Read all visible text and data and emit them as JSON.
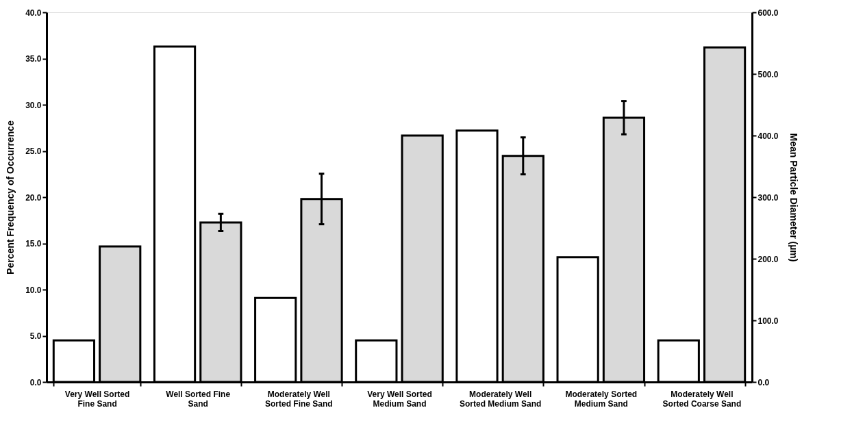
{
  "chart_data": {
    "type": "bar",
    "categories": [
      "Very Well Sorted Fine Sand",
      "Well Sorted Fine Sand",
      "Moderately Well Sorted Fine Sand",
      "Very Well Sorted Medium Sand",
      "Moderately Well Sorted Medium Sand",
      "Moderately Sorted Medium Sand",
      "Moderately Well Sorted Coarse Sand"
    ],
    "series": [
      {
        "color": "#ffffff",
        "values": [
          4.5,
          36.3,
          9.1,
          4.5,
          27.2,
          13.5,
          4.5
        ]
      },
      {
        "color": "#d9d9d9",
        "axis": "y2",
        "values": [
          220,
          259,
          297,
          400,
          367,
          429,
          543
        ],
        "errors": [
          null,
          14,
          41,
          null,
          30,
          27,
          null
        ]
      }
    ],
    "ylabel": "Percent Frequency of Occurrence",
    "y2label": "Mean Particle Diameter (µm)",
    "ylim": [
      0,
      40
    ],
    "yticks": [
      {
        "value": 0,
        "label": "0.0"
      },
      {
        "value": 5,
        "label": "5.0"
      },
      {
        "value": 10,
        "label": "10.0"
      },
      {
        "value": 15,
        "label": "15.0"
      },
      {
        "value": 20,
        "label": "20.0"
      },
      {
        "value": 25,
        "label": "25.0"
      },
      {
        "value": 30,
        "label": "30.0"
      },
      {
        "value": 35,
        "label": "35.0"
      },
      {
        "value": 40,
        "label": "40.0"
      }
    ],
    "y2lim": [
      0,
      600
    ],
    "y2ticks": [
      {
        "value": 0,
        "label": "0.0"
      },
      {
        "value": 100,
        "label": "100.0"
      },
      {
        "value": 200,
        "label": "200.0"
      },
      {
        "value": 300,
        "label": "300.0"
      },
      {
        "value": 400,
        "label": "400.0"
      },
      {
        "value": 500,
        "label": "500.0"
      },
      {
        "value": 600,
        "label": "600.0"
      }
    ],
    "grid": false
  }
}
